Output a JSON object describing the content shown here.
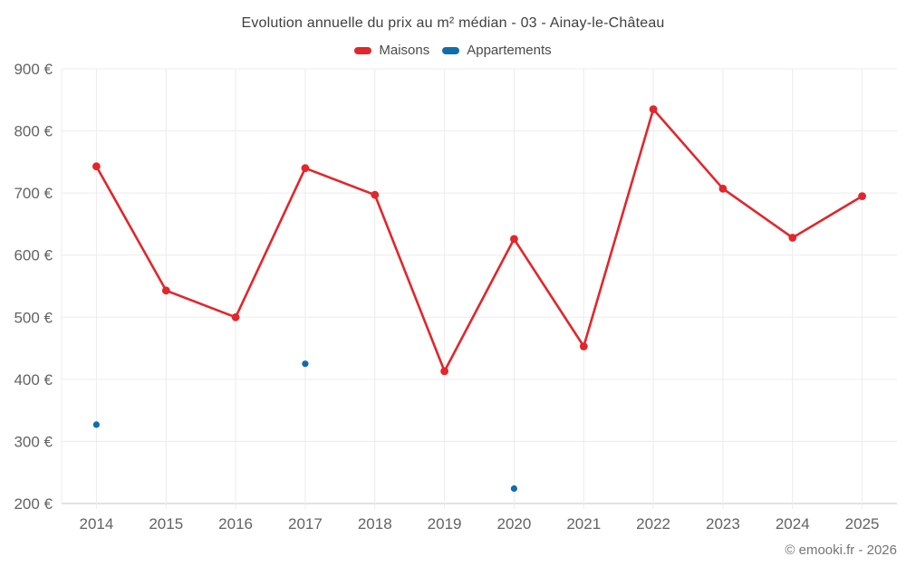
{
  "chart_data": {
    "type": "line",
    "title": "Evolution annuelle du prix au m² médian - 03 - Ainay-le-Château",
    "categories": [
      "2014",
      "2015",
      "2016",
      "2017",
      "2018",
      "2019",
      "2020",
      "2021",
      "2022",
      "2023",
      "2024",
      "2025"
    ],
    "series": [
      {
        "name": "Maisons",
        "color": "#e2262b",
        "draw": "line+points",
        "values": [
          743,
          543,
          500,
          740,
          697,
          413,
          626,
          453,
          835,
          707,
          628,
          695
        ]
      },
      {
        "name": "Appartements",
        "color": "#106daa",
        "draw": "points",
        "values": [
          327,
          null,
          null,
          425,
          null,
          null,
          224,
          null,
          null,
          null,
          null,
          null
        ]
      }
    ],
    "xlabel": "",
    "ylabel": "",
    "ylim": [
      200,
      900
    ],
    "y_ticks": [
      200,
      300,
      400,
      500,
      600,
      700,
      800,
      900
    ],
    "y_tick_suffix": " €",
    "grid": true,
    "legend_position": "top"
  },
  "footer": {
    "credit": "© emooki.fr - 2026"
  },
  "colors": {
    "background": "#ffffff",
    "grid": "#ececec",
    "axis": "#c6c6c6",
    "tick_text": "#636363",
    "title_text": "#3f3f3f",
    "legend_text": "#4a4a4a",
    "footer_text": "#757575",
    "maisons": "#e2262b",
    "appartements": "#106daa"
  }
}
